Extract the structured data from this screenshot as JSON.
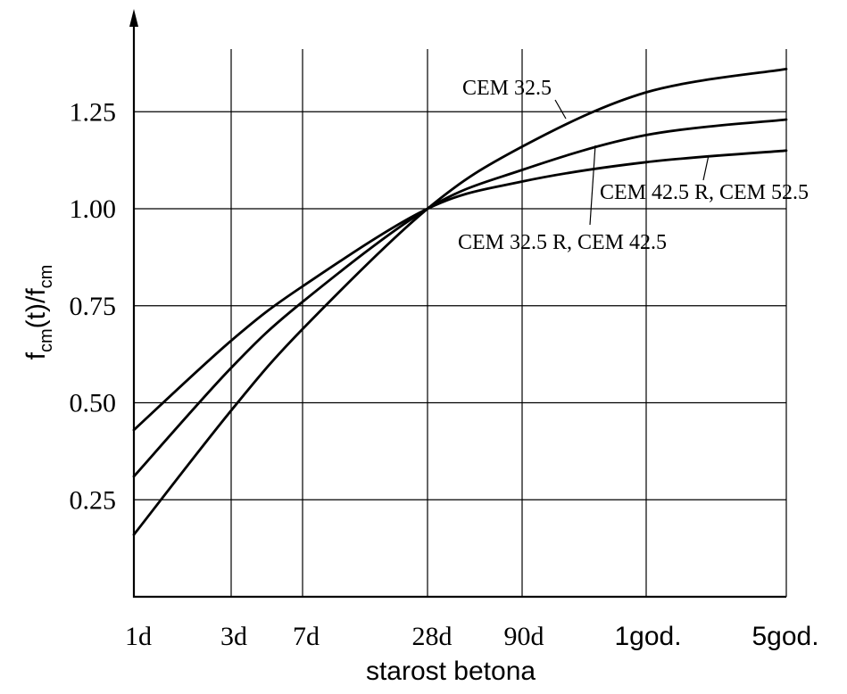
{
  "chart_data": {
    "type": "line",
    "xlabel": "starost betona",
    "ylabel": {
      "main": "f",
      "sub1": "cm",
      "mid": "(t)/f",
      "sub2": "cm"
    },
    "x_ticks": [
      "1d",
      "3d",
      "7d",
      "28d",
      "90d",
      "1god.",
      "5god."
    ],
    "x_values_days": [
      1,
      3,
      7,
      28,
      90,
      365,
      1825
    ],
    "x_scale": "log",
    "xlim_days": [
      1,
      1825
    ],
    "y_ticks": [
      "0.25",
      "0.50",
      "0.75",
      "1.00",
      "1.25"
    ],
    "ylim": [
      0,
      1.4
    ],
    "grid": true,
    "series": [
      {
        "name": "CEM 32.5",
        "points": [
          {
            "x": 1,
            "y": 0.16
          },
          {
            "x": 3,
            "y": 0.48
          },
          {
            "x": 7,
            "y": 0.69
          },
          {
            "x": 28,
            "y": 1.0
          },
          {
            "x": 90,
            "y": 1.16
          },
          {
            "x": 365,
            "y": 1.3
          },
          {
            "x": 1825,
            "y": 1.36
          }
        ]
      },
      {
        "name": "CEM 32.5 R, CEM 42.5",
        "points": [
          {
            "x": 1,
            "y": 0.31
          },
          {
            "x": 3,
            "y": 0.59
          },
          {
            "x": 7,
            "y": 0.76
          },
          {
            "x": 28,
            "y": 1.0
          },
          {
            "x": 90,
            "y": 1.1
          },
          {
            "x": 365,
            "y": 1.19
          },
          {
            "x": 1825,
            "y": 1.23
          }
        ]
      },
      {
        "name": "CEM 42.5 R, CEM 52.5",
        "points": [
          {
            "x": 1,
            "y": 0.43
          },
          {
            "x": 3,
            "y": 0.66
          },
          {
            "x": 7,
            "y": 0.8
          },
          {
            "x": 28,
            "y": 1.0
          },
          {
            "x": 90,
            "y": 1.07
          },
          {
            "x": 365,
            "y": 1.12
          },
          {
            "x": 1825,
            "y": 1.15
          }
        ]
      }
    ],
    "annotations": [
      "CEM 32.5",
      "CEM 32.5 R, CEM 42.5",
      "CEM 42.5 R, CEM 52.5"
    ],
    "colors": {
      "line": "#000000",
      "grid": "#000000",
      "background": "#ffffff"
    }
  }
}
